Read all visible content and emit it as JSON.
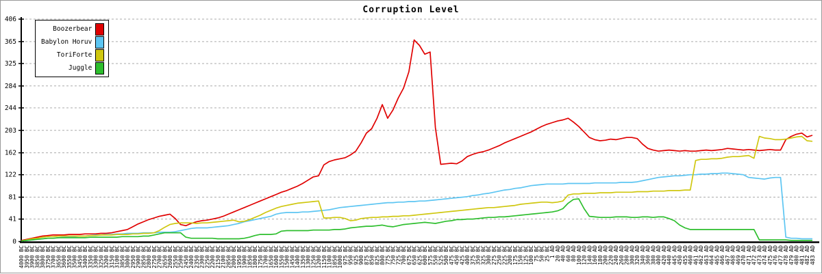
{
  "title": "Corruption Level",
  "colors": {
    "red": "#e00000",
    "blue": "#5cc5f2",
    "yellow": "#cfc70f",
    "green": "#2dbe2d",
    "grid": "#aaaaaa",
    "axis": "#000000"
  },
  "chart_data": {
    "type": "line",
    "title": "Corruption Level",
    "xlabel": "",
    "ylabel": "",
    "ylim": [
      0,
      406
    ],
    "yticks": [
      0,
      41,
      81,
      122,
      162,
      203,
      244,
      284,
      325,
      365,
      406
    ],
    "grid": "horizontal-dashed",
    "legend_position": "top-left",
    "x_labels": [
      "4000 BC",
      "3950 BC",
      "3900 BC",
      "3850 BC",
      "3800 BC",
      "3750 BC",
      "3700 BC",
      "3650 BC",
      "3600 BC",
      "3550 BC",
      "3500 BC",
      "3450 BC",
      "3400 BC",
      "3350 BC",
      "3300 BC",
      "3250 BC",
      "3200 BC",
      "3150 BC",
      "3100 BC",
      "3050 BC",
      "3000 BC",
      "2950 BC",
      "2900 BC",
      "2850 BC",
      "2800 BC",
      "2750 BC",
      "2700 BC",
      "2650 BC",
      "2600 BC",
      "2550 BC",
      "2500 BC",
      "2450 BC",
      "2400 BC",
      "2350 BC",
      "2300 BC",
      "2250 BC",
      "2200 BC",
      "2150 BC",
      "2100 BC",
      "2050 BC",
      "2000 BC",
      "1950 BC",
      "1900 BC",
      "1850 BC",
      "1800 BC",
      "1750 BC",
      "1700 BC",
      "1650 BC",
      "1600 BC",
      "1550 BC",
      "1500 BC",
      "1450 BC",
      "1400 BC",
      "1350 BC",
      "1300 BC",
      "1250 BC",
      "1200 BC",
      "1150 BC",
      "1100 BC",
      "1050 BC",
      "1000 BC",
      "975 BC",
      "950 BC",
      "925 BC",
      "900 BC",
      "875 BC",
      "850 BC",
      "825 BC",
      "800 BC",
      "775 BC",
      "750 BC",
      "725 BC",
      "700 BC",
      "675 BC",
      "650 BC",
      "625 BC",
      "600 BC",
      "575 BC",
      "550 BC",
      "525 BC",
      "500 BC",
      "475 BC",
      "450 BC",
      "425 BC",
      "400 BC",
      "375 BC",
      "350 BC",
      "325 BC",
      "300 BC",
      "275 BC",
      "250 BC",
      "225 BC",
      "200 BC",
      "175 BC",
      "150 BC",
      "125 BC",
      "100 BC",
      "75 BC",
      "50 BC",
      "25 BC",
      "1 AD",
      "20 AD",
      "40 AD",
      "60 AD",
      "80 AD",
      "100 AD",
      "120 AD",
      "140 AD",
      "160 AD",
      "180 AD",
      "200 AD",
      "220 AD",
      "240 AD",
      "260 AD",
      "280 AD",
      "300 AD",
      "320 AD",
      "340 AD",
      "360 AD",
      "380 AD",
      "400 AD",
      "420 AD",
      "440 AD",
      "445 AD",
      "450 AD",
      "455 AD",
      "460 AD",
      "461 AD",
      "462 AD",
      "463 AD",
      "464 AD",
      "465 AD",
      "466 AD",
      "467 AD",
      "468 AD",
      "469 AD",
      "470 AD",
      "471 AD",
      "472 AD",
      "473 AD",
      "474 AD",
      "475 AD",
      "476 AD",
      "477 AD",
      "478 AD",
      "479 AD",
      "480 AD",
      "481 AD",
      "482 AD",
      "483 AD"
    ],
    "series": [
      {
        "name": "Boozerbear",
        "color": "#e00000",
        "values": [
          2,
          4,
          6,
          8,
          10,
          11,
          12,
          12,
          12,
          13,
          13,
          13,
          14,
          14,
          14,
          15,
          15,
          16,
          18,
          20,
          22,
          27,
          32,
          36,
          40,
          43,
          46,
          48,
          50,
          42,
          31,
          29,
          33,
          36,
          38,
          39,
          41,
          43,
          46,
          50,
          54,
          58,
          62,
          66,
          70,
          74,
          78,
          82,
          86,
          90,
          93,
          97,
          101,
          106,
          112,
          118,
          120,
          140,
          146,
          149,
          151,
          153,
          158,
          165,
          180,
          198,
          206,
          225,
          250,
          225,
          240,
          262,
          280,
          310,
          368,
          358,
          342,
          346,
          208,
          141,
          142,
          143,
          142,
          147,
          155,
          159,
          162,
          164,
          167,
          171,
          175,
          180,
          184,
          188,
          192,
          196,
          200,
          205,
          210,
          214,
          217,
          220,
          222,
          225,
          218,
          210,
          200,
          190,
          186,
          184,
          185,
          187,
          186,
          188,
          190,
          190,
          188,
          178,
          170,
          167,
          165,
          166,
          167,
          166,
          165,
          166,
          165,
          165,
          166,
          167,
          166,
          167,
          168,
          170,
          169,
          168,
          167,
          168,
          167,
          166,
          167,
          168,
          167,
          167,
          186,
          192,
          196,
          198,
          191,
          194
        ]
      },
      {
        "name": "Babylon Horuv",
        "color": "#5cc5f2",
        "values": [
          1,
          2,
          3,
          4,
          5,
          6,
          6,
          7,
          8,
          9,
          9,
          10,
          10,
          11,
          12,
          12,
          13,
          13,
          14,
          14,
          15,
          15,
          15,
          16,
          16,
          16,
          17,
          17,
          17,
          18,
          20,
          22,
          24,
          25,
          25,
          25,
          26,
          27,
          28,
          29,
          31,
          33,
          36,
          38,
          40,
          42,
          44,
          46,
          50,
          52,
          53,
          53,
          53,
          54,
          54,
          55,
          56,
          57,
          58,
          60,
          62,
          63,
          64,
          65,
          66,
          67,
          68,
          69,
          70,
          71,
          71,
          72,
          72,
          73,
          73,
          74,
          74,
          75,
          76,
          77,
          78,
          79,
          80,
          81,
          82,
          84,
          85,
          87,
          88,
          90,
          92,
          94,
          95,
          97,
          98,
          100,
          102,
          103,
          104,
          105,
          105,
          105,
          105,
          106,
          106,
          106,
          106,
          106,
          107,
          107,
          107,
          107,
          107,
          108,
          108,
          108,
          109,
          111,
          113,
          115,
          117,
          118,
          119,
          120,
          120,
          121,
          122,
          122,
          123,
          123,
          124,
          124,
          125,
          125,
          124,
          123,
          122,
          117,
          116,
          115,
          114,
          116,
          117,
          117,
          8,
          6,
          6,
          5,
          5,
          5
        ]
      },
      {
        "name": "ToriForte",
        "color": "#cfc70f",
        "values": [
          1,
          3,
          5,
          6,
          8,
          9,
          9,
          10,
          10,
          10,
          10,
          10,
          10,
          11,
          11,
          12,
          12,
          12,
          13,
          13,
          13,
          14,
          14,
          15,
          15,
          16,
          20,
          26,
          31,
          33,
          34,
          34,
          34,
          33,
          34,
          34,
          35,
          36,
          37,
          38,
          39,
          36,
          37,
          40,
          44,
          48,
          53,
          57,
          61,
          64,
          66,
          68,
          70,
          71,
          72,
          73,
          74,
          43,
          43,
          44,
          44,
          42,
          38,
          39,
          42,
          43,
          44,
          44,
          45,
          45,
          46,
          46,
          47,
          47,
          48,
          49,
          50,
          51,
          52,
          53,
          54,
          55,
          56,
          57,
          58,
          59,
          60,
          61,
          62,
          62,
          63,
          64,
          65,
          66,
          68,
          69,
          70,
          71,
          72,
          72,
          71,
          72,
          74,
          85,
          87,
          87,
          88,
          88,
          88,
          89,
          89,
          89,
          90,
          90,
          90,
          90,
          91,
          91,
          91,
          92,
          92,
          92,
          93,
          93,
          93,
          94,
          94,
          148,
          150,
          150,
          151,
          151,
          152,
          154,
          155,
          155,
          156,
          157,
          152,
          192,
          189,
          188,
          186,
          186,
          187,
          189,
          191,
          192,
          184,
          183
        ]
      },
      {
        "name": "Juggle",
        "color": "#2dbe2d",
        "values": [
          1,
          2,
          3,
          4,
          5,
          6,
          6,
          7,
          7,
          7,
          7,
          7,
          7,
          8,
          8,
          8,
          8,
          8,
          8,
          9,
          9,
          9,
          9,
          10,
          10,
          12,
          14,
          16,
          16,
          16,
          16,
          8,
          6,
          6,
          6,
          6,
          6,
          5,
          5,
          5,
          5,
          5,
          6,
          8,
          11,
          13,
          13,
          13,
          14,
          19,
          20,
          20,
          20,
          20,
          20,
          21,
          21,
          21,
          21,
          22,
          22,
          23,
          25,
          26,
          27,
          28,
          28,
          29,
          30,
          28,
          27,
          29,
          31,
          32,
          33,
          34,
          35,
          34,
          33,
          35,
          37,
          38,
          40,
          40,
          41,
          41,
          42,
          43,
          44,
          44,
          45,
          45,
          46,
          47,
          48,
          49,
          50,
          51,
          52,
          53,
          54,
          56,
          60,
          70,
          77,
          78,
          60,
          46,
          45,
          44,
          44,
          44,
          45,
          45,
          45,
          44,
          44,
          45,
          45,
          44,
          45,
          45,
          42,
          38,
          30,
          25,
          22,
          22,
          22,
          22,
          22,
          22,
          22,
          22,
          22,
          22,
          22,
          22,
          22,
          3,
          3,
          3,
          3,
          3,
          3,
          2,
          2,
          2,
          2,
          2
        ]
      }
    ]
  }
}
